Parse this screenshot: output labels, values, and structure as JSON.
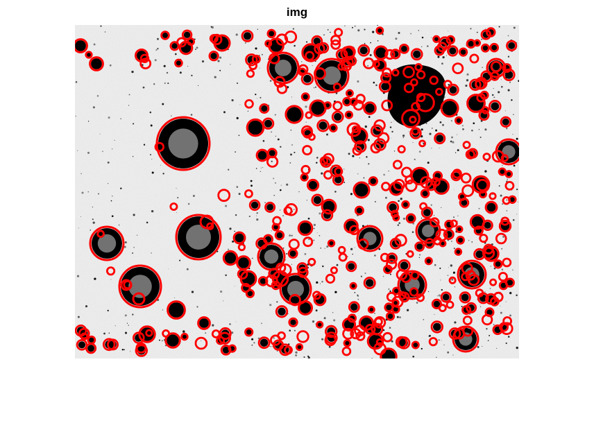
{
  "figure": {
    "title": "img"
  },
  "image": {
    "description_style": "grayscale micrograph with dark circular particles outlined by red detection circles",
    "background_color": "#efefef",
    "particle_color": "#000000",
    "marker_color": "#ff0000"
  }
}
